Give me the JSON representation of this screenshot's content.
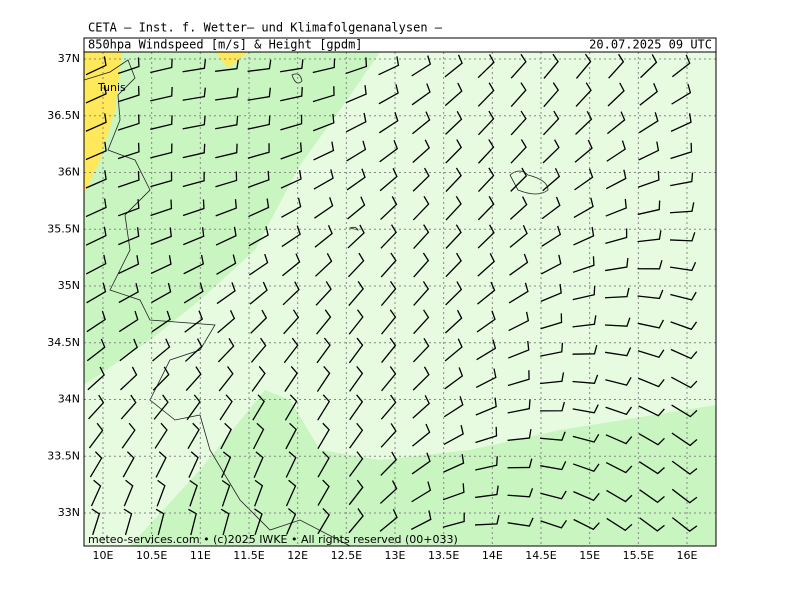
{
  "header": {
    "title": "CETA – Inst. f. Wetter– und Klimafolgenanalysen –",
    "subtitle": "850hpa Windspeed [m/s] & Height [gpdm]",
    "datetime": "20.07.2025 09 UTC"
  },
  "map": {
    "place_label": "Tunis",
    "lat_ticks": [
      {
        "value": 37,
        "label": "37N"
      },
      {
        "value": 36.5,
        "label": "36.5N"
      },
      {
        "value": 36,
        "label": "36N"
      },
      {
        "value": 35.5,
        "label": "35.5N"
      },
      {
        "value": 35,
        "label": "35N"
      },
      {
        "value": 34.5,
        "label": "34.5N"
      },
      {
        "value": 34,
        "label": "34N"
      },
      {
        "value": 33.5,
        "label": "33.5N"
      },
      {
        "value": 33,
        "label": "33N"
      }
    ],
    "lon_ticks": [
      {
        "value": 10,
        "label": "10E"
      },
      {
        "value": 10.5,
        "label": "10.5E"
      },
      {
        "value": 11,
        "label": "11E"
      },
      {
        "value": 11.5,
        "label": "11.5E"
      },
      {
        "value": 12,
        "label": "12E"
      },
      {
        "value": 12.5,
        "label": "12.5E"
      },
      {
        "value": 13,
        "label": "13E"
      },
      {
        "value": 13.5,
        "label": "13.5E"
      },
      {
        "value": 14,
        "label": "14E"
      },
      {
        "value": 14.5,
        "label": "14.5E"
      },
      {
        "value": 15,
        "label": "15E"
      },
      {
        "value": 15.5,
        "label": "15.5E"
      },
      {
        "value": 16,
        "label": "16E"
      }
    ]
  },
  "footer": {
    "credit": "meteo-services.com • (c)2025 IWKE • All rights reserved (00+033)"
  }
}
